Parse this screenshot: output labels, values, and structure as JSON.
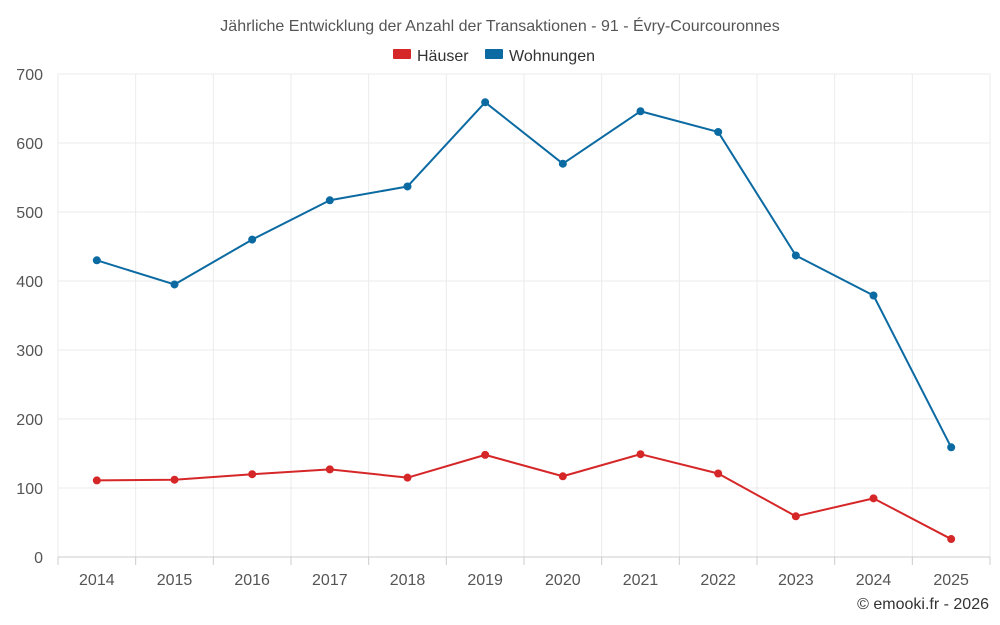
{
  "chart_data": {
    "type": "line",
    "title": "Jährliche Entwicklung der Anzahl der Transaktionen - 91 - Évry-Courcouronnes",
    "categories": [
      "2014",
      "2015",
      "2016",
      "2017",
      "2018",
      "2019",
      "2020",
      "2021",
      "2022",
      "2023",
      "2024",
      "2025"
    ],
    "series": [
      {
        "name": "Häuser",
        "color": "#d62728",
        "values": [
          111,
          112,
          120,
          127,
          115,
          148,
          117,
          149,
          121,
          59,
          85,
          26
        ]
      },
      {
        "name": "Wohnungen",
        "color": "#0b6aa2",
        "values": [
          430,
          395,
          460,
          517,
          537,
          659,
          570,
          646,
          616,
          437,
          379,
          159
        ]
      }
    ],
    "ylim": [
      0,
      700
    ],
    "yticks": [
      0,
      100,
      200,
      300,
      400,
      500,
      600,
      700
    ],
    "xlabel": "",
    "ylabel": "",
    "grid": true,
    "legend_position": "top-center"
  },
  "credit": "© emooki.fr - 2026"
}
